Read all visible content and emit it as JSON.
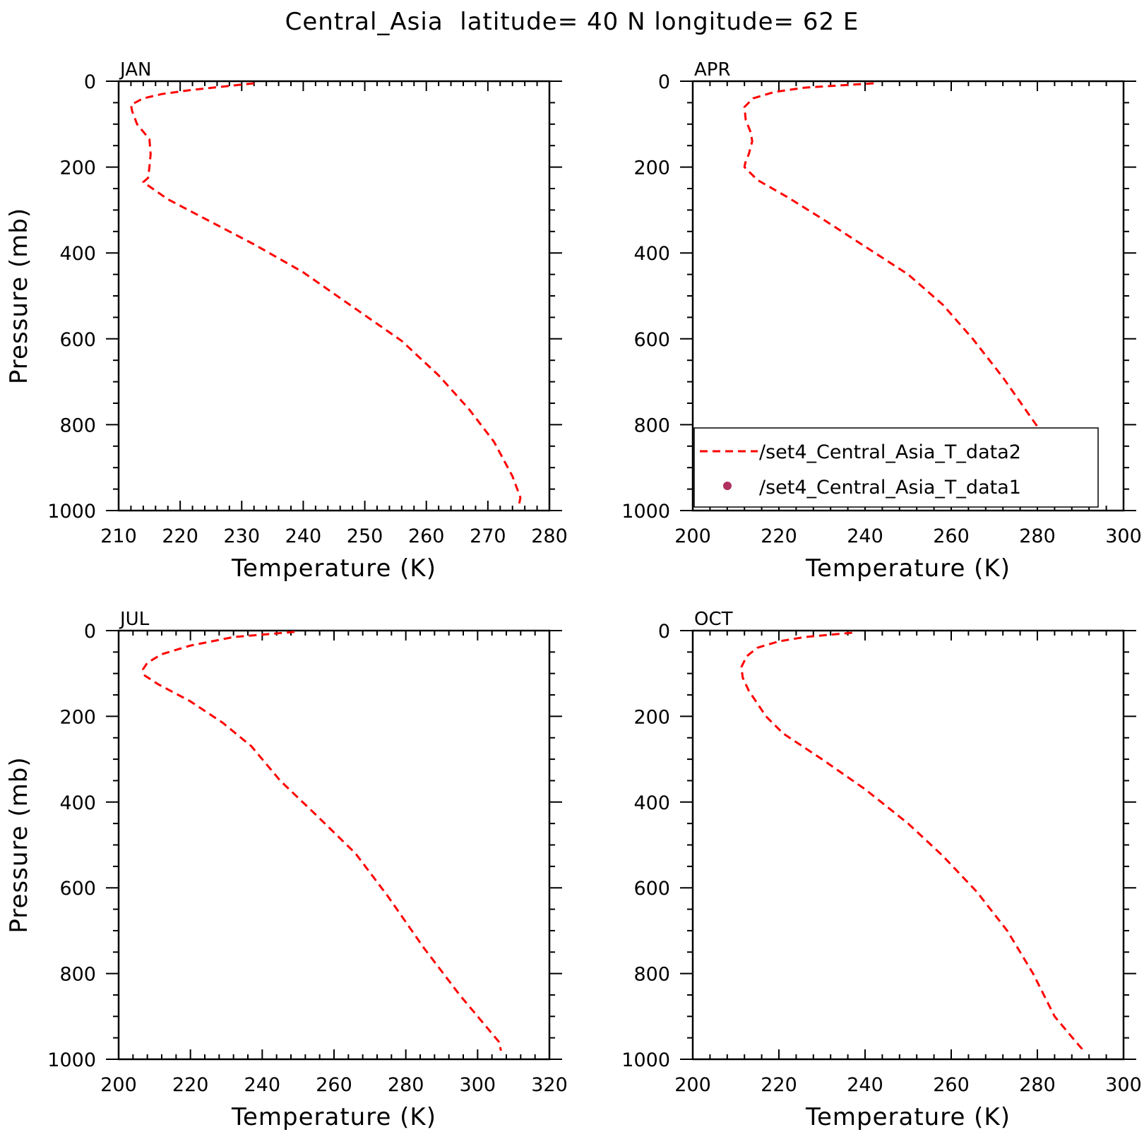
{
  "figure": {
    "title": "Central_Asia  latitude= 40 N longitude= 62 E"
  },
  "legend": {
    "entries": [
      {
        "label": "/set4_Central_Asia_T_data2",
        "style": "dashed-line",
        "color": "#ff0000"
      },
      {
        "label": "/set4_Central_Asia_T_data1",
        "style": "dot",
        "color": "#b03060"
      }
    ]
  },
  "chart_data": [
    {
      "type": "line",
      "panel": "JAN",
      "xlabel": "Temperature (K)",
      "ylabel": "Pressure (mb)",
      "xlim": [
        210,
        280
      ],
      "ylim": [
        1000,
        0
      ],
      "xticks": [
        210,
        220,
        230,
        240,
        250,
        260,
        270,
        280
      ],
      "yticks": [
        0,
        200,
        400,
        600,
        800,
        1000
      ],
      "series": [
        {
          "color": "#ff0000",
          "style": "dashed",
          "x": [
            232,
            222,
            217,
            214,
            212,
            212.2,
            213,
            215,
            215.2,
            215,
            214.8,
            214,
            218,
            224,
            232,
            240,
            248,
            256,
            262,
            267,
            271,
            274,
            275.3,
            275
          ],
          "y": [
            5,
            20,
            30,
            40,
            55,
            70,
            100,
            135,
            170,
            200,
            225,
            235,
            275,
            320,
            380,
            445,
            525,
            605,
            685,
            765,
            840,
            920,
            970,
            990
          ]
        }
      ]
    },
    {
      "type": "line",
      "panel": "APR",
      "xlabel": "Temperature (K)",
      "ylabel": "",
      "xlim": [
        200,
        300
      ],
      "ylim": [
        1000,
        0
      ],
      "xticks": [
        200,
        220,
        240,
        260,
        280,
        300
      ],
      "yticks": [
        0,
        200,
        400,
        600,
        800,
        1000
      ],
      "series": [
        {
          "color": "#ff0000",
          "style": "dashed",
          "x": [
            242,
            226,
            219,
            214,
            212,
            212.3,
            213.5,
            213.8,
            213,
            212.2,
            212,
            215,
            222,
            230,
            240,
            250,
            258,
            265,
            272,
            279,
            286,
            292
          ],
          "y": [
            5,
            15,
            25,
            40,
            60,
            90,
            120,
            140,
            170,
            190,
            200,
            230,
            270,
            320,
            385,
            450,
            520,
            600,
            690,
            790,
            890,
            985
          ]
        }
      ]
    },
    {
      "type": "line",
      "panel": "JUL",
      "xlabel": "Temperature (K)",
      "ylabel": "Pressure (mb)",
      "xlim": [
        200,
        320
      ],
      "ylim": [
        1000,
        0
      ],
      "xticks": [
        200,
        220,
        240,
        260,
        280,
        300,
        320
      ],
      "yticks": [
        0,
        200,
        400,
        600,
        800,
        1000
      ],
      "series": [
        {
          "color": "#ff0000",
          "style": "dashed",
          "x": [
            249,
            232,
            220,
            212,
            208,
            206.8,
            207.3,
            211,
            220,
            229,
            237,
            245,
            255,
            266,
            275,
            285,
            295,
            302,
            306,
            306.5
          ],
          "y": [
            3,
            15,
            35,
            55,
            75,
            90,
            105,
            125,
            165,
            215,
            270,
            350,
            430,
            520,
            620,
            740,
            850,
            920,
            960,
            980
          ]
        }
      ]
    },
    {
      "type": "line",
      "panel": "OCT",
      "xlabel": "Temperature (K)",
      "ylabel": "",
      "xlim": [
        200,
        300
      ],
      "ylim": [
        1000,
        0
      ],
      "xticks": [
        200,
        220,
        240,
        260,
        280,
        300
      ],
      "yticks": [
        0,
        200,
        400,
        600,
        800,
        1000
      ],
      "series": [
        {
          "color": "#ff0000",
          "style": "dashed",
          "x": [
            237,
            226,
            220,
            215,
            212.5,
            211.3,
            211.6,
            213,
            215,
            217,
            221,
            230,
            240,
            250,
            258,
            266,
            273,
            279,
            284,
            289,
            290.3,
            290
          ],
          "y": [
            5,
            15,
            25,
            40,
            60,
            85,
            110,
            140,
            170,
            200,
            240,
            300,
            370,
            450,
            525,
            610,
            700,
            800,
            900,
            960,
            975,
            985
          ]
        }
      ]
    }
  ]
}
